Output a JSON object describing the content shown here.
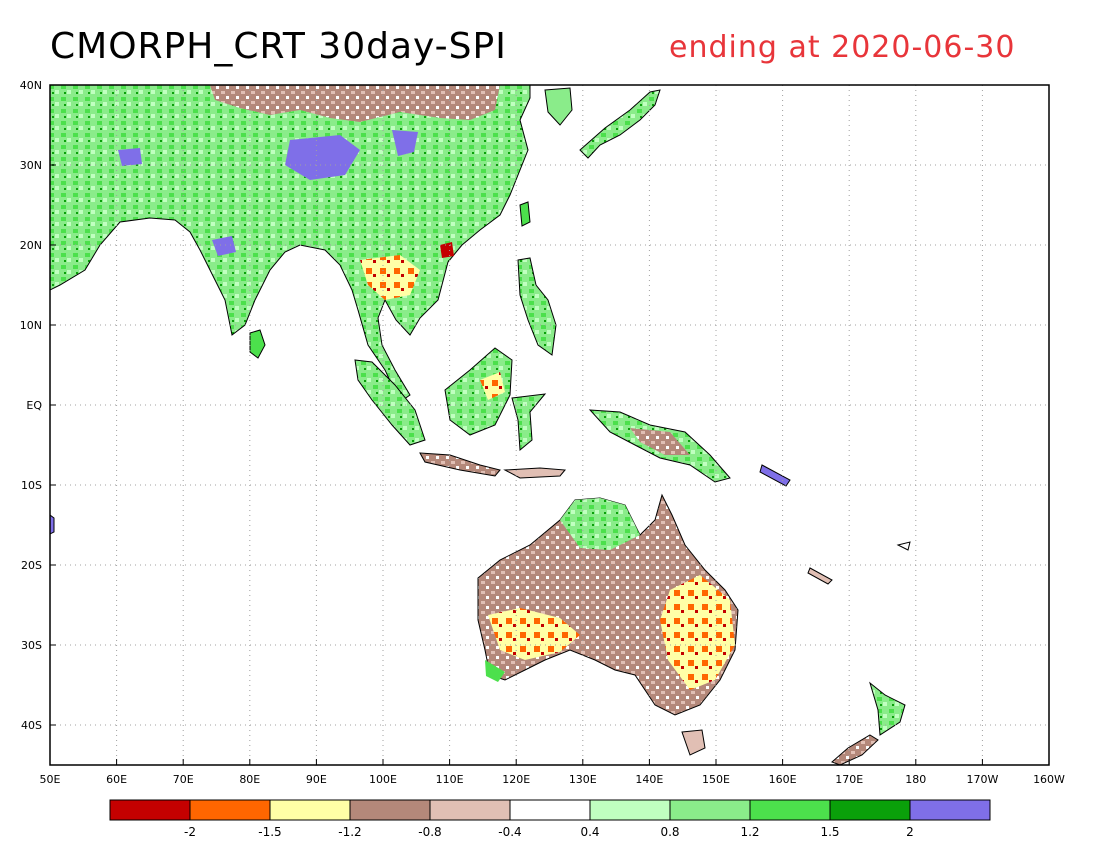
{
  "title": "CMORPH_CRT 30day-SPI",
  "subtitle": "ending at 2020-06-30",
  "colors": {
    "title": "#000000",
    "subtitle": "#e8353a",
    "ocean": "#ffffff",
    "coast": "#000000",
    "grid": "#a0a0a0"
  },
  "map": {
    "lon_range": [
      50,
      200
    ],
    "lat_range": [
      -45,
      40
    ],
    "lon_ticks": [
      "50E",
      "60E",
      "70E",
      "80E",
      "90E",
      "100E",
      "110E",
      "120E",
      "130E",
      "140E",
      "150E",
      "160E",
      "170E",
      "180",
      "170W",
      "160W"
    ],
    "lat_ticks": [
      "40N",
      "30N",
      "20N",
      "10N",
      "EQ",
      "10S",
      "20S",
      "30S",
      "40S"
    ],
    "lat_tick_values": [
      40,
      30,
      20,
      10,
      0,
      -10,
      -20,
      -30,
      -40
    ],
    "grid": "dotted"
  },
  "legend": {
    "colors": [
      "#c40000",
      "#ff6600",
      "#ffffa6",
      "#b4887a",
      "#e1bfb4",
      "#ffffff",
      "#c0ffc0",
      "#8aec8a",
      "#4ce04c",
      "#0aa00a",
      "#7f6fe8"
    ],
    "labels": [
      "-2",
      "-1.5",
      "-1.2",
      "-0.8",
      "-0.4",
      "0.4",
      "0.8",
      "1.2",
      "1.5",
      "2"
    ]
  }
}
